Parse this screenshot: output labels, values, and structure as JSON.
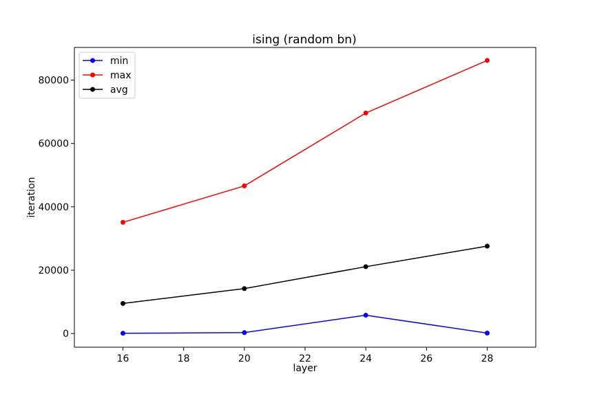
{
  "chart_data": {
    "type": "line",
    "title": "ising (random bn)",
    "xlabel": "layer",
    "ylabel": "iteration",
    "x": [
      16,
      20,
      24,
      28
    ],
    "xlim": [
      14.4,
      29.6
    ],
    "ylim": [
      -4300,
      90300
    ],
    "xticks": [
      16,
      18,
      20,
      22,
      24,
      26,
      28
    ],
    "yticks": [
      0,
      20000,
      40000,
      60000,
      80000
    ],
    "grid": false,
    "legend_position": "upper left",
    "series": [
      {
        "name": "min",
        "color": "#0000ff",
        "marker": "circle",
        "values": [
          100,
          300,
          5800,
          150
        ]
      },
      {
        "name": "max",
        "color": "#ff0000",
        "marker": "circle",
        "values": [
          35100,
          46600,
          69600,
          86200
        ]
      },
      {
        "name": "avg",
        "color": "#000000",
        "marker": "circle",
        "values": [
          9500,
          14200,
          21100,
          27600
        ]
      }
    ]
  }
}
